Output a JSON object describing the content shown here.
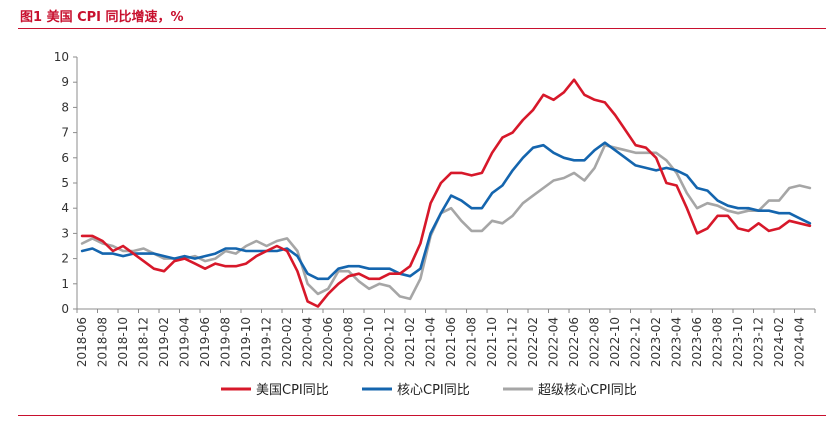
{
  "figure": {
    "title": "图1  美国 CPI 同比增速，%"
  },
  "chart_data": {
    "type": "line",
    "title": "图1  美国 CPI 同比增速，%",
    "xlabel": "",
    "ylabel": "",
    "ylim": [
      0,
      10
    ],
    "yticks": [
      0,
      1,
      2,
      3,
      4,
      5,
      6,
      7,
      8,
      9,
      10
    ],
    "grid": false,
    "legend_position": "bottom",
    "x": [
      "2018-06",
      "2018-07",
      "2018-08",
      "2018-09",
      "2018-10",
      "2018-11",
      "2018-12",
      "2019-01",
      "2019-02",
      "2019-03",
      "2019-04",
      "2019-05",
      "2019-06",
      "2019-07",
      "2019-08",
      "2019-09",
      "2019-10",
      "2019-11",
      "2019-12",
      "2020-01",
      "2020-02",
      "2020-03",
      "2020-04",
      "2020-05",
      "2020-06",
      "2020-07",
      "2020-08",
      "2020-09",
      "2020-10",
      "2020-11",
      "2020-12",
      "2021-01",
      "2021-02",
      "2021-03",
      "2021-04",
      "2021-05",
      "2021-06",
      "2021-07",
      "2021-08",
      "2021-09",
      "2021-10",
      "2021-11",
      "2021-12",
      "2022-01",
      "2022-02",
      "2022-03",
      "2022-04",
      "2022-05",
      "2022-06",
      "2022-07",
      "2022-08",
      "2022-09",
      "2022-10",
      "2022-11",
      "2022-12",
      "2023-01",
      "2023-02",
      "2023-03",
      "2023-04",
      "2023-05",
      "2023-06",
      "2023-07",
      "2023-08",
      "2023-09",
      "2023-10",
      "2023-11",
      "2023-12",
      "2024-01",
      "2024-02",
      "2024-03",
      "2024-04",
      "2024-05"
    ],
    "xtick_labels": [
      "2018-06",
      "2018-08",
      "2018-10",
      "2018-12",
      "2019-02",
      "2019-04",
      "2019-06",
      "2019-08",
      "2019-10",
      "2019-12",
      "2020-02",
      "2020-04",
      "2020-06",
      "2020-08",
      "2020-10",
      "2020-12",
      "2021-02",
      "2021-04",
      "2021-06",
      "2021-08",
      "2021-10",
      "2021-12",
      "2022-02",
      "2022-04",
      "2022-06",
      "2022-08",
      "2022-10",
      "2022-12",
      "2023-02",
      "2023-04",
      "2023-06",
      "2023-08",
      "2023-10",
      "2023-12",
      "2024-02",
      "2024-04"
    ],
    "series": [
      {
        "name": "美国CPI同比",
        "color": "#d7182a",
        "values": [
          2.9,
          2.9,
          2.7,
          2.3,
          2.5,
          2.2,
          1.9,
          1.6,
          1.5,
          1.9,
          2.0,
          1.8,
          1.6,
          1.8,
          1.7,
          1.7,
          1.8,
          2.1,
          2.3,
          2.5,
          2.3,
          1.5,
          0.3,
          0.1,
          0.6,
          1.0,
          1.3,
          1.4,
          1.2,
          1.2,
          1.4,
          1.4,
          1.7,
          2.6,
          4.2,
          5.0,
          5.4,
          5.4,
          5.3,
          5.4,
          6.2,
          6.8,
          7.0,
          7.5,
          7.9,
          8.5,
          8.3,
          8.6,
          9.1,
          8.5,
          8.3,
          8.2,
          7.7,
          7.1,
          6.5,
          6.4,
          6.0,
          5.0,
          4.9,
          4.0,
          3.0,
          3.2,
          3.7,
          3.7,
          3.2,
          3.1,
          3.4,
          3.1,
          3.2,
          3.5,
          3.4,
          3.3
        ]
      },
      {
        "name": "核心CPI同比",
        "color": "#1465ae",
        "values": [
          2.3,
          2.4,
          2.2,
          2.2,
          2.1,
          2.2,
          2.2,
          2.2,
          2.1,
          2.0,
          2.1,
          2.0,
          2.1,
          2.2,
          2.4,
          2.4,
          2.3,
          2.3,
          2.3,
          2.3,
          2.4,
          2.1,
          1.4,
          1.2,
          1.2,
          1.6,
          1.7,
          1.7,
          1.6,
          1.6,
          1.6,
          1.4,
          1.3,
          1.6,
          3.0,
          3.8,
          4.5,
          4.3,
          4.0,
          4.0,
          4.6,
          4.9,
          5.5,
          6.0,
          6.4,
          6.5,
          6.2,
          6.0,
          5.9,
          5.9,
          6.3,
          6.6,
          6.3,
          6.0,
          5.7,
          5.6,
          5.5,
          5.6,
          5.5,
          5.3,
          4.8,
          4.7,
          4.3,
          4.1,
          4.0,
          4.0,
          3.9,
          3.9,
          3.8,
          3.8,
          3.6,
          3.4
        ]
      },
      {
        "name": "超级核心CPI同比",
        "color": "#a6a6a6",
        "values": [
          2.6,
          2.8,
          2.6,
          2.5,
          2.3,
          2.3,
          2.4,
          2.2,
          2.0,
          2.0,
          2.0,
          2.1,
          1.9,
          2.0,
          2.3,
          2.2,
          2.5,
          2.7,
          2.5,
          2.7,
          2.8,
          2.3,
          1.0,
          0.6,
          0.8,
          1.5,
          1.5,
          1.1,
          0.8,
          1.0,
          0.9,
          0.5,
          0.4,
          1.2,
          2.9,
          3.8,
          4.0,
          3.5,
          3.1,
          3.1,
          3.5,
          3.4,
          3.7,
          4.2,
          4.5,
          4.8,
          5.1,
          5.2,
          5.4,
          5.1,
          5.6,
          6.5,
          6.4,
          6.3,
          6.2,
          6.2,
          6.2,
          5.9,
          5.4,
          4.6,
          4.0,
          4.2,
          4.1,
          3.9,
          3.8,
          3.9,
          3.9,
          4.3,
          4.3,
          4.8,
          4.9,
          4.8
        ]
      }
    ]
  }
}
